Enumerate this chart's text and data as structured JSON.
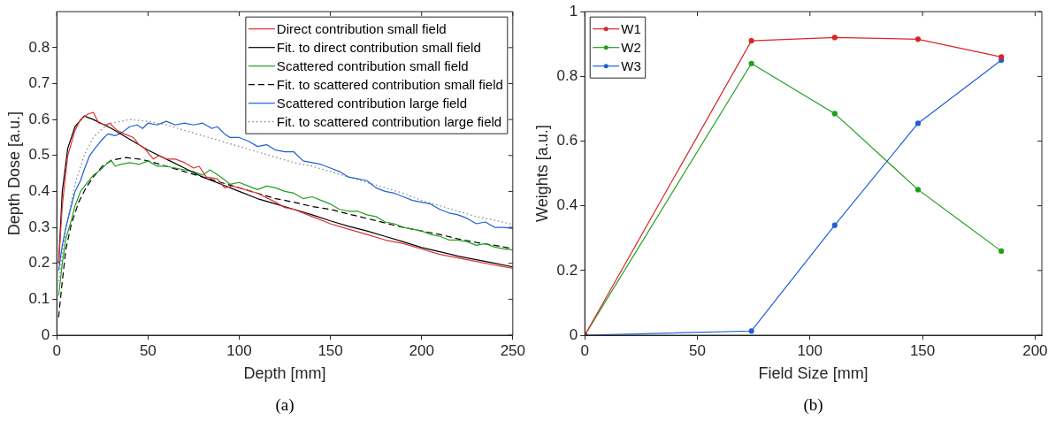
{
  "chart_data": [
    {
      "type": "line",
      "xlabel": "Depth [mm]",
      "ylabel": "Depth Dose [a.u.]",
      "xlim": [
        0,
        250
      ],
      "ylim": [
        0,
        0.9
      ],
      "xticks": [
        0,
        50,
        100,
        150,
        200,
        250
      ],
      "yticks": [
        0,
        0.1,
        0.2,
        0.3,
        0.4,
        0.5,
        0.6,
        0.7,
        0.8
      ],
      "grid": false,
      "legend": "top right",
      "annotations": [
        "(a)"
      ],
      "series": [
        {
          "name": "Direct contribution small field",
          "color": "#e03030",
          "line_style": "solid",
          "x": [
            1,
            3,
            6,
            10,
            13,
            17,
            20,
            23,
            27,
            29,
            33,
            37,
            42,
            45,
            48,
            53,
            56,
            60,
            65,
            70,
            75,
            78,
            82,
            88,
            92,
            96,
            100,
            110,
            120,
            125,
            130,
            140,
            150,
            160,
            170,
            180,
            190,
            200,
            210,
            220,
            230,
            240,
            250
          ],
          "values": [
            0.2,
            0.36,
            0.5,
            0.57,
            0.6,
            0.615,
            0.62,
            0.59,
            0.585,
            0.59,
            0.57,
            0.56,
            0.55,
            0.53,
            0.52,
            0.49,
            0.5,
            0.49,
            0.49,
            0.48,
            0.465,
            0.47,
            0.44,
            0.435,
            0.41,
            0.415,
            0.41,
            0.395,
            0.37,
            0.355,
            0.35,
            0.33,
            0.31,
            0.295,
            0.28,
            0.265,
            0.255,
            0.24,
            0.225,
            0.215,
            0.205,
            0.195,
            0.186
          ]
        },
        {
          "name": "Fit. to direct contribution small field",
          "color": "#000000",
          "line_style": "solid",
          "x": [
            1,
            3,
            6,
            10,
            15,
            20,
            30,
            40,
            50,
            60,
            70,
            80,
            90,
            100,
            110,
            120,
            130,
            140,
            150,
            160,
            170,
            180,
            190,
            200,
            210,
            220,
            230,
            240,
            250
          ],
          "values": [
            0.2,
            0.4,
            0.52,
            0.58,
            0.61,
            0.6,
            0.575,
            0.545,
            0.515,
            0.49,
            0.465,
            0.44,
            0.42,
            0.4,
            0.38,
            0.365,
            0.35,
            0.335,
            0.318,
            0.303,
            0.29,
            0.275,
            0.26,
            0.244,
            0.232,
            0.22,
            0.21,
            0.2,
            0.19
          ]
        },
        {
          "name": "Scattered contribution small field",
          "color": "#20a020",
          "line_style": "solid",
          "x": [
            1,
            3,
            5,
            8,
            10,
            13,
            16,
            20,
            24,
            28,
            30,
            32,
            35,
            40,
            45,
            50,
            55,
            60,
            65,
            70,
            75,
            80,
            84,
            90,
            95,
            100,
            105,
            110,
            115,
            120,
            125,
            130,
            135,
            140,
            145,
            150,
            155,
            160,
            165,
            170,
            175,
            180,
            185,
            190,
            195,
            200,
            205,
            210,
            215,
            220,
            225,
            230,
            235,
            240,
            245,
            250
          ],
          "values": [
            0.11,
            0.2,
            0.27,
            0.32,
            0.36,
            0.4,
            0.42,
            0.445,
            0.46,
            0.48,
            0.485,
            0.47,
            0.475,
            0.48,
            0.475,
            0.485,
            0.47,
            0.47,
            0.465,
            0.46,
            0.455,
            0.445,
            0.46,
            0.44,
            0.42,
            0.425,
            0.415,
            0.405,
            0.415,
            0.41,
            0.4,
            0.395,
            0.38,
            0.385,
            0.375,
            0.365,
            0.35,
            0.345,
            0.345,
            0.335,
            0.33,
            0.315,
            0.31,
            0.3,
            0.295,
            0.29,
            0.28,
            0.275,
            0.265,
            0.265,
            0.26,
            0.25,
            0.255,
            0.245,
            0.24,
            0.237
          ]
        },
        {
          "name": "Fit. to scattered contribution small field",
          "color": "#000000",
          "line_style": "dashed",
          "x": [
            1,
            3,
            5,
            8,
            12,
            16,
            20,
            25,
            30,
            38,
            45,
            50,
            60,
            70,
            80,
            90,
            100,
            110,
            120,
            130,
            140,
            150,
            160,
            170,
            180,
            190,
            200,
            210,
            220,
            230,
            240,
            250
          ],
          "values": [
            0.05,
            0.15,
            0.24,
            0.31,
            0.37,
            0.41,
            0.44,
            0.47,
            0.487,
            0.494,
            0.49,
            0.485,
            0.47,
            0.455,
            0.44,
            0.425,
            0.41,
            0.395,
            0.38,
            0.37,
            0.358,
            0.35,
            0.337,
            0.325,
            0.312,
            0.3,
            0.29,
            0.28,
            0.268,
            0.258,
            0.25,
            0.241
          ]
        },
        {
          "name": "Scattered contribution large field",
          "color": "#1f5fd6",
          "line_style": "solid",
          "x": [
            1,
            3,
            5,
            8,
            10,
            13,
            15,
            18,
            21,
            25,
            28,
            32,
            36,
            40,
            44,
            47,
            50,
            55,
            60,
            65,
            70,
            75,
            80,
            85,
            88,
            92,
            95,
            100,
            105,
            110,
            115,
            120,
            125,
            130,
            135,
            140,
            145,
            150,
            155,
            160,
            165,
            170,
            175,
            180,
            185,
            190,
            195,
            200,
            205,
            210,
            215,
            220,
            225,
            230,
            235,
            240,
            245,
            250
          ],
          "values": [
            0.18,
            0.25,
            0.3,
            0.36,
            0.4,
            0.43,
            0.46,
            0.5,
            0.52,
            0.545,
            0.56,
            0.555,
            0.565,
            0.58,
            0.585,
            0.575,
            0.59,
            0.585,
            0.595,
            0.585,
            0.59,
            0.585,
            0.59,
            0.575,
            0.58,
            0.56,
            0.55,
            0.55,
            0.54,
            0.525,
            0.53,
            0.515,
            0.51,
            0.51,
            0.485,
            0.48,
            0.475,
            0.465,
            0.455,
            0.44,
            0.435,
            0.43,
            0.41,
            0.4,
            0.395,
            0.385,
            0.375,
            0.37,
            0.365,
            0.35,
            0.34,
            0.335,
            0.325,
            0.31,
            0.315,
            0.3,
            0.3,
            0.297
          ]
        },
        {
          "name": "Fit. to scattered contribution large field",
          "color": "#808080",
          "line_style": "dotted",
          "x": [
            1,
            5,
            10,
            15,
            20,
            25,
            30,
            40,
            50,
            60,
            70,
            80,
            90,
            100,
            110,
            120,
            130,
            140,
            150,
            160,
            170,
            180,
            190,
            200,
            210,
            220,
            230,
            240,
            250
          ],
          "values": [
            0.15,
            0.3,
            0.42,
            0.5,
            0.55,
            0.575,
            0.59,
            0.6,
            0.595,
            0.585,
            0.57,
            0.555,
            0.54,
            0.525,
            0.51,
            0.495,
            0.48,
            0.47,
            0.455,
            0.44,
            0.425,
            0.41,
            0.395,
            0.375,
            0.36,
            0.345,
            0.33,
            0.32,
            0.308
          ]
        }
      ]
    },
    {
      "type": "line",
      "xlabel": "Field Size [mm]",
      "ylabel": "Weights [a.u.]",
      "xlim": [
        0,
        203
      ],
      "ylim": [
        0,
        1
      ],
      "xticks": [
        0,
        50,
        100,
        150,
        200
      ],
      "yticks": [
        0,
        0.2,
        0.4,
        0.6,
        0.8,
        1
      ],
      "grid": false,
      "legend": "top left",
      "marker": "circle",
      "annotations": [
        "(b)"
      ],
      "x": [
        0,
        74,
        111,
        148,
        185
      ],
      "series": [
        {
          "name": "W1",
          "color": "#d62728",
          "values": [
            0,
            0.91,
            0.92,
            0.915,
            0.86
          ]
        },
        {
          "name": "W2",
          "color": "#20a020",
          "values": [
            0,
            0.84,
            0.685,
            0.45,
            0.26
          ]
        },
        {
          "name": "W3",
          "color": "#1f5fd6",
          "values": [
            0,
            0.013,
            0.34,
            0.655,
            0.85
          ]
        }
      ]
    }
  ]
}
